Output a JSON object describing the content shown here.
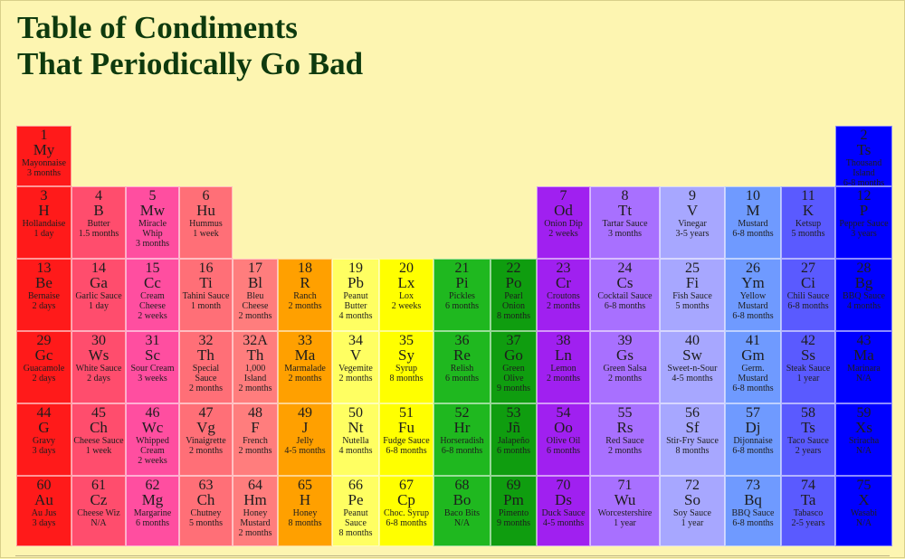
{
  "title": {
    "line1": "Table of Condiments",
    "line2": "That Periodically Go Bad"
  },
  "colors": {
    "red": "#ff1a1a",
    "rose": "#ff4d6d",
    "pink": "#ff4ea0",
    "salmon": "#ff6f77",
    "lightred": "#ff7d7d",
    "orange": "#ffa000",
    "lightyellow": "#ffff62",
    "yellow": "#ffff00",
    "green": "#1fb81f",
    "darkgreen": "#0f9d0f",
    "violet": "#a020f0",
    "lavender": "#a870ff",
    "lightblue": "#a7a7ff",
    "cornflower": "#6f9aff",
    "indigo": "#5a5aff",
    "blue": "#0000ff"
  },
  "elements": [
    {
      "num": "1",
      "sym": "My",
      "name": "Mayonnaise",
      "shelf": "3 months",
      "color": "red"
    },
    {
      "num": "2",
      "sym": "Ts",
      "name": "Thousand Island",
      "shelf": "6-8 months",
      "color": "blue"
    },
    {
      "num": "3",
      "sym": "H",
      "name": "Hollandaise",
      "shelf": "1 day",
      "color": "red"
    },
    {
      "num": "4",
      "sym": "B",
      "name": "Butter",
      "shelf": "1.5 months",
      "color": "rose"
    },
    {
      "num": "5",
      "sym": "Mw",
      "name": "Miracle Whip",
      "shelf": "3 months",
      "color": "pink"
    },
    {
      "num": "6",
      "sym": "Hu",
      "name": "Hummus",
      "shelf": "1 week",
      "color": "salmon"
    },
    {
      "num": "7",
      "sym": "Od",
      "name": "Onion Dip",
      "shelf": "2 weeks",
      "color": "violet"
    },
    {
      "num": "8",
      "sym": "Tt",
      "name": "Tartar Sauce",
      "shelf": "3 months",
      "color": "lavender"
    },
    {
      "num": "9",
      "sym": "V",
      "name": "Vinegar",
      "shelf": "3-5 years",
      "color": "lightblue"
    },
    {
      "num": "10",
      "sym": "M",
      "name": "Mustard",
      "shelf": "6-8 months",
      "color": "cornflower"
    },
    {
      "num": "11",
      "sym": "K",
      "name": "Ketsup",
      "shelf": "5 months",
      "color": "indigo"
    },
    {
      "num": "12",
      "sym": "P",
      "name": "Pepper Sauce",
      "shelf": "3 years",
      "color": "blue"
    },
    {
      "num": "13",
      "sym": "Be",
      "name": "Bernaise",
      "shelf": "2 days",
      "color": "red"
    },
    {
      "num": "14",
      "sym": "Ga",
      "name": "Garlic Sauce",
      "shelf": "1 day",
      "color": "rose"
    },
    {
      "num": "15",
      "sym": "Cc",
      "name": "Cream Cheese",
      "shelf": "2 weeks",
      "color": "pink"
    },
    {
      "num": "16",
      "sym": "Ti",
      "name": "Tahini Sauce",
      "shelf": "1 month",
      "color": "salmon"
    },
    {
      "num": "17",
      "sym": "Bl",
      "name": "Bleu Cheese",
      "shelf": "2 months",
      "color": "lightred"
    },
    {
      "num": "18",
      "sym": "R",
      "name": "Ranch",
      "shelf": "2 months",
      "color": "orange"
    },
    {
      "num": "19",
      "sym": "Pb",
      "name": "Peanut Butter",
      "shelf": "4 months",
      "color": "lightyellow"
    },
    {
      "num": "20",
      "sym": "Lx",
      "name": "Lox",
      "shelf": "2 weeks",
      "color": "yellow"
    },
    {
      "num": "21",
      "sym": "Pi",
      "name": "Pickles",
      "shelf": "6 months",
      "color": "green"
    },
    {
      "num": "22",
      "sym": "Po",
      "name": "Pearl Onion",
      "shelf": "8 months",
      "color": "darkgreen"
    },
    {
      "num": "23",
      "sym": "Cr",
      "name": "Croutons",
      "shelf": "2 months",
      "color": "violet"
    },
    {
      "num": "24",
      "sym": "Cs",
      "name": "Cocktail Sauce",
      "shelf": "6-8 months",
      "color": "lavender"
    },
    {
      "num": "25",
      "sym": "Fi",
      "name": "Fish Sauce",
      "shelf": "5 months",
      "color": "lightblue"
    },
    {
      "num": "26",
      "sym": "Ym",
      "name": "Yellow Mustard",
      "shelf": "6-8 months",
      "color": "cornflower"
    },
    {
      "num": "27",
      "sym": "Ci",
      "name": "Chili Sauce",
      "shelf": "6-8 months",
      "color": "indigo"
    },
    {
      "num": "28",
      "sym": "Bg",
      "name": "BBQ Sauce",
      "shelf": "4 months",
      "color": "blue"
    },
    {
      "num": "29",
      "sym": "Gc",
      "name": "Guacamole",
      "shelf": "2 days",
      "color": "red"
    },
    {
      "num": "30",
      "sym": "Ws",
      "name": "White Sauce",
      "shelf": "2 days",
      "color": "rose"
    },
    {
      "num": "31",
      "sym": "Sc",
      "name": "Sour Cream",
      "shelf": "3 weeks",
      "color": "pink"
    },
    {
      "num": "32",
      "sym": "Th",
      "name": "Special Sauce",
      "shelf": "2 months",
      "color": "salmon"
    },
    {
      "num": "32A",
      "sym": "Th",
      "name": "1,000 Island",
      "shelf": "2 months",
      "color": "lightred"
    },
    {
      "num": "33",
      "sym": "Ma",
      "name": "Marmalade",
      "shelf": "2 months",
      "color": "orange"
    },
    {
      "num": "34",
      "sym": "V",
      "name": "Vegemite",
      "shelf": "2 months",
      "color": "lightyellow"
    },
    {
      "num": "35",
      "sym": "Sy",
      "name": "Syrup",
      "shelf": "8 months",
      "color": "yellow"
    },
    {
      "num": "36",
      "sym": "Re",
      "name": "Relish",
      "shelf": "6 months",
      "color": "green"
    },
    {
      "num": "37",
      "sym": "Go",
      "name": "Green Olive",
      "shelf": "9 months",
      "color": "darkgreen"
    },
    {
      "num": "38",
      "sym": "Ln",
      "name": "Lemon",
      "shelf": "2 months",
      "color": "violet"
    },
    {
      "num": "39",
      "sym": "Gs",
      "name": "Green Salsa",
      "shelf": "2 months",
      "color": "lavender"
    },
    {
      "num": "40",
      "sym": "Sw",
      "name": "Sweet-n-Sour",
      "shelf": "4-5 months",
      "color": "lightblue"
    },
    {
      "num": "41",
      "sym": "Gm",
      "name": "Germ. Mustard",
      "shelf": "6-8 months",
      "color": "cornflower"
    },
    {
      "num": "42",
      "sym": "Ss",
      "name": "Steak Sauce",
      "shelf": "1 year",
      "color": "indigo"
    },
    {
      "num": "43",
      "sym": "Ma",
      "name": "Marinara",
      "shelf": "N/A",
      "color": "blue"
    },
    {
      "num": "44",
      "sym": "G",
      "name": "Gravy",
      "shelf": "3 days",
      "color": "red"
    },
    {
      "num": "45",
      "sym": "Ch",
      "name": "Cheese Sauce",
      "shelf": "1 week",
      "color": "rose"
    },
    {
      "num": "46",
      "sym": "Wc",
      "name": "Whipped Cream",
      "shelf": "2 weeks",
      "color": "pink"
    },
    {
      "num": "47",
      "sym": "Vg",
      "name": "Vinaigrette",
      "shelf": "2 months",
      "color": "salmon"
    },
    {
      "num": "48",
      "sym": "F",
      "name": "French",
      "shelf": "2 months",
      "color": "lightred"
    },
    {
      "num": "49",
      "sym": "J",
      "name": "Jelly",
      "shelf": "4-5 months",
      "color": "orange"
    },
    {
      "num": "50",
      "sym": "Nt",
      "name": "Nutella",
      "shelf": "4 months",
      "color": "lightyellow"
    },
    {
      "num": "51",
      "sym": "Fu",
      "name": "Fudge Sauce",
      "shelf": "6-8 months",
      "color": "yellow"
    },
    {
      "num": "52",
      "sym": "Hr",
      "name": "Horseradish",
      "shelf": "6-8 months",
      "color": "green"
    },
    {
      "num": "53",
      "sym": "Jñ",
      "name": "Jalapeño",
      "shelf": "6 months",
      "color": "darkgreen"
    },
    {
      "num": "54",
      "sym": "Oo",
      "name": "Olive Oil",
      "shelf": "6 months",
      "color": "violet"
    },
    {
      "num": "55",
      "sym": "Rs",
      "name": "Red Sauce",
      "shelf": "2 months",
      "color": "lavender"
    },
    {
      "num": "56",
      "sym": "Sf",
      "name": "Stir-Fry Sauce",
      "shelf": "8 months",
      "color": "lightblue"
    },
    {
      "num": "57",
      "sym": "Dj",
      "name": "Dijonnaise",
      "shelf": "6-8 months",
      "color": "cornflower"
    },
    {
      "num": "58",
      "sym": "Ts",
      "name": "Taco Sauce",
      "shelf": "2 years",
      "color": "indigo"
    },
    {
      "num": "59",
      "sym": "Xs",
      "name": "Sriracha",
      "shelf": "N/A",
      "color": "blue"
    },
    {
      "num": "60",
      "sym": "Au",
      "name": "Au Jus",
      "shelf": "3 days",
      "color": "red"
    },
    {
      "num": "61",
      "sym": "Cz",
      "name": "Cheese Wiz",
      "shelf": "N/A",
      "color": "rose"
    },
    {
      "num": "62",
      "sym": "Mg",
      "name": "Margarine",
      "shelf": "6 months",
      "color": "pink"
    },
    {
      "num": "63",
      "sym": "Ch",
      "name": "Chutney",
      "shelf": "5 months",
      "color": "salmon"
    },
    {
      "num": "64",
      "sym": "Hm",
      "name": "Honey Mustard",
      "shelf": "2 months",
      "color": "lightred"
    },
    {
      "num": "65",
      "sym": "H",
      "name": "Honey",
      "shelf": "8 months",
      "color": "orange"
    },
    {
      "num": "66",
      "sym": "Pe",
      "name": "Peanut Sauce",
      "shelf": "8 months",
      "color": "lightyellow"
    },
    {
      "num": "67",
      "sym": "Cp",
      "name": "Choc. Syrup",
      "shelf": "6-8 months",
      "color": "yellow"
    },
    {
      "num": "68",
      "sym": "Bo",
      "name": "Baco Bits",
      "shelf": "N/A",
      "color": "green"
    },
    {
      "num": "69",
      "sym": "Pm",
      "name": "Pimento",
      "shelf": "9 months",
      "color": "darkgreen"
    },
    {
      "num": "70",
      "sym": "Ds",
      "name": "Duck Sauce",
      "shelf": "4-5 months",
      "color": "violet"
    },
    {
      "num": "71",
      "sym": "Wu",
      "name": "Worcestershire",
      "shelf": "1 year",
      "color": "lavender"
    },
    {
      "num": "72",
      "sym": "So",
      "name": "Soy Sauce",
      "shelf": "1 year",
      "color": "lightblue"
    },
    {
      "num": "73",
      "sym": "Bq",
      "name": "BBQ Sauce",
      "shelf": "6-8 months",
      "color": "cornflower"
    },
    {
      "num": "74",
      "sym": "Ta",
      "name": "Tabasco",
      "shelf": "2-5 years",
      "color": "indigo"
    },
    {
      "num": "75",
      "sym": "X",
      "name": "Wasabi",
      "shelf": "N/A",
      "color": "blue"
    }
  ]
}
